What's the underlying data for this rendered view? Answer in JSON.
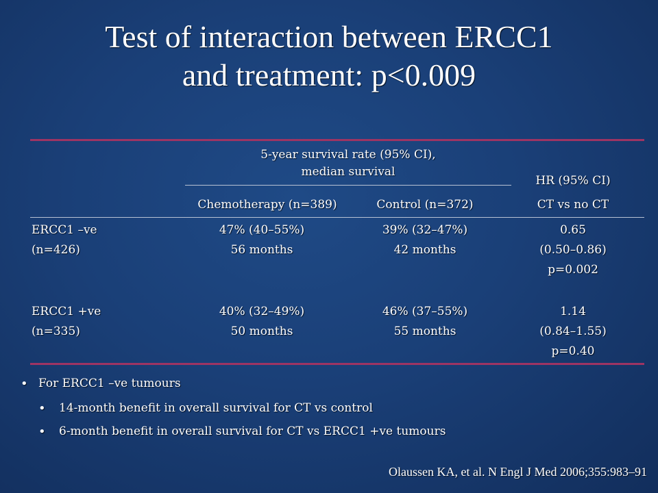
{
  "title": {
    "line1": "Test of interaction between ERCC1",
    "line2": "and treatment: p<0.009"
  },
  "table": {
    "group_header": {
      "line1": "5-year survival rate (95% CI),",
      "line2": "median survival"
    },
    "hr_header": {
      "line1": "HR (95% CI)",
      "line2": "CT vs no CT"
    },
    "col_chemo": "Chemotherapy (n=389)",
    "col_control": "Control (n=372)",
    "rows": [
      {
        "label1": "ERCC1 –ve",
        "label2": "(n=426)",
        "chemo1": "47% (40–55%)",
        "chemo2": "56 months",
        "control1": "39% (32–47%)",
        "control2": "42 months",
        "hr1": "0.65",
        "hr2": "(0.50–0.86)",
        "hr3": "p=0.002"
      },
      {
        "label1": "ERCC1 +ve",
        "label2": "(n=335)",
        "chemo1": "40% (32–49%)",
        "chemo2": "50 months",
        "control1": "46% (37–55%)",
        "control2": "55 months",
        "hr1": "1.14",
        "hr2": "(0.84–1.55)",
        "hr3": "p=0.40"
      }
    ]
  },
  "bullets": {
    "main": "For ERCC1 –ve tumours",
    "sub": [
      "14-month benefit in overall survival for CT vs control",
      "6-month benefit in overall survival for CT vs ERCC1 +ve tumours"
    ]
  },
  "citation": "Olaussen KA, et al. N Engl J Med 2006;355:983–91",
  "colors": {
    "background": "#1a3f77",
    "rule": "#9e3463",
    "text": "#ffffff"
  }
}
